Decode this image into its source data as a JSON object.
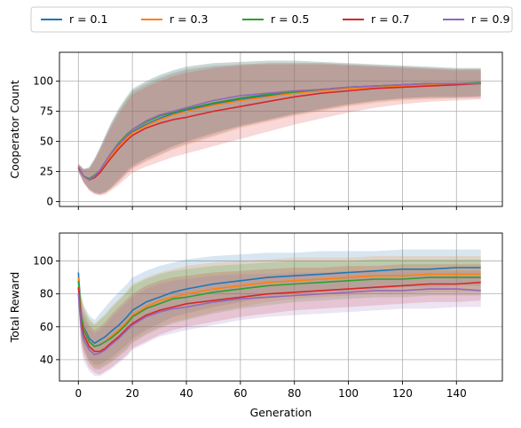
{
  "chart_data": {
    "type": "line",
    "shared_x_label": "Generation",
    "legend": {
      "placement": "top-center",
      "entries": [
        {
          "label": "r = 0.1",
          "color": "#1f77b4"
        },
        {
          "label": "r = 0.3",
          "color": "#ff7f0e"
        },
        {
          "label": "r = 0.5",
          "color": "#2ca02c"
        },
        {
          "label": "r = 0.7",
          "color": "#d62728"
        },
        {
          "label": "r = 0.9",
          "color": "#9467bd"
        }
      ]
    },
    "grid": true,
    "panels": [
      {
        "ylabel": "Cooperator Count",
        "xlim": [
          -7,
          157
        ],
        "ylim": [
          -4,
          124
        ],
        "x_ticks": [
          0,
          20,
          40,
          60,
          80,
          100,
          120,
          140
        ],
        "x_tick_labels": [
          "",
          "",
          "",
          "",
          "",
          "",
          "",
          ""
        ],
        "y_ticks": [
          0,
          25,
          50,
          75,
          100
        ],
        "y_tick_labels": [
          "0",
          "25",
          "50",
          "75",
          "100"
        ],
        "x": [
          0,
          2,
          4,
          6,
          8,
          10,
          12,
          15,
          18,
          20,
          25,
          30,
          35,
          40,
          50,
          60,
          70,
          80,
          90,
          100,
          110,
          120,
          130,
          140,
          149
        ],
        "series": [
          {
            "name": "r = 0.1",
            "color": "#1f77b4",
            "values": [
              28,
              21,
              19,
              21,
              26,
              33,
              39,
              47,
              54,
              58,
              64,
              69,
              73,
              76,
              81,
              85,
              88,
              91,
              93,
              95,
              96,
              97,
              98,
              98,
              98
            ],
            "lower": [
              25,
              16,
              10,
              7,
              6,
              8,
              11,
              17,
              24,
              28,
              34,
              39,
              44,
              48,
              55,
              62,
              67,
              72,
              76,
              80,
              83,
              85,
              86,
              86,
              87
            ],
            "upper": [
              31,
              27,
              28,
              35,
              44,
              54,
              64,
              76,
              86,
              92,
              98,
              103,
              107,
              110,
              113,
              114,
              115,
              115,
              115,
              114,
              113,
              112,
              111,
              110,
              110
            ]
          },
          {
            "name": "r = 0.3",
            "color": "#ff7f0e",
            "values": [
              28,
              21,
              19,
              21,
              25,
              32,
              38,
              46,
              53,
              57,
              63,
              68,
              72,
              75,
              80,
              84,
              87,
              90,
              92,
              94,
              95,
              96,
              97,
              98,
              98
            ],
            "lower": [
              25,
              16,
              10,
              7,
              6,
              7,
              10,
              16,
              23,
              27,
              33,
              38,
              43,
              47,
              54,
              61,
              66,
              71,
              75,
              79,
              82,
              84,
              85,
              86,
              86
            ],
            "upper": [
              31,
              27,
              28,
              35,
              44,
              54,
              63,
              75,
              85,
              91,
              97,
              102,
              106,
              109,
              112,
              114,
              115,
              115,
              115,
              114,
              113,
              112,
              111,
              110,
              110
            ]
          },
          {
            "name": "r = 0.5",
            "color": "#2ca02c",
            "values": [
              28,
              21,
              19,
              22,
              26,
              33,
              40,
              49,
              56,
              60,
              66,
              71,
              74,
              77,
              82,
              86,
              89,
              91,
              93,
              95,
              96,
              97,
              98,
              98,
              99
            ],
            "lower": [
              25,
              16,
              11,
              8,
              7,
              8,
              12,
              19,
              26,
              30,
              36,
              41,
              46,
              50,
              57,
              63,
              68,
              73,
              77,
              81,
              84,
              86,
              87,
              87,
              88
            ],
            "upper": [
              31,
              27,
              29,
              36,
              45,
              55,
              65,
              78,
              88,
              94,
              100,
              105,
              109,
              112,
              115,
              116,
              117,
              117,
              116,
              115,
              114,
              113,
              112,
              111,
              111
            ]
          },
          {
            "name": "r = 0.7",
            "color": "#d62728",
            "values": [
              28,
              21,
              18,
              20,
              24,
              30,
              36,
              44,
              51,
              55,
              61,
              65,
              68,
              70,
              75,
              79,
              83,
              87,
              90,
              92,
              94,
              95,
              96,
              97,
              98
            ],
            "lower": [
              25,
              15,
              9,
              6,
              5,
              6,
              9,
              14,
              20,
              24,
              29,
              33,
              37,
              40,
              46,
              52,
              58,
              64,
              69,
              74,
              78,
              81,
              83,
              84,
              85
            ],
            "upper": [
              31,
              27,
              27,
              34,
              42,
              52,
              61,
              73,
              83,
              89,
              95,
              100,
              104,
              107,
              111,
              113,
              114,
              114,
              114,
              113,
              112,
              111,
              110,
              109,
              109
            ]
          },
          {
            "name": "r = 0.9",
            "color": "#9467bd",
            "values": [
              29,
              21,
              18,
              21,
              26,
              33,
              40,
              48,
              55,
              60,
              67,
              72,
              75,
              78,
              84,
              88,
              90,
              92,
              93,
              95,
              96,
              97,
              98,
              98,
              98
            ],
            "lower": [
              26,
              16,
              10,
              7,
              6,
              8,
              11,
              18,
              25,
              29,
              36,
              41,
              46,
              50,
              57,
              63,
              68,
              73,
              77,
              81,
              84,
              86,
              87,
              87,
              87
            ],
            "upper": [
              32,
              27,
              28,
              36,
              45,
              55,
              65,
              77,
              87,
              93,
              100,
              105,
              109,
              112,
              115,
              116,
              117,
              117,
              116,
              115,
              114,
              113,
              112,
              111,
              111
            ]
          }
        ]
      },
      {
        "ylabel": "Total Reward",
        "xlabel": "Generation",
        "xlim": [
          -7,
          157
        ],
        "ylim": [
          27,
          117
        ],
        "x_ticks": [
          0,
          20,
          40,
          60,
          80,
          100,
          120,
          140
        ],
        "x_tick_labels": [
          "0",
          "20",
          "40",
          "60",
          "80",
          "100",
          "120",
          "140"
        ],
        "y_ticks": [
          40,
          60,
          80,
          100
        ],
        "y_tick_labels": [
          "40",
          "60",
          "80",
          "100"
        ],
        "x": [
          0,
          1,
          2,
          4,
          6,
          8,
          10,
          12,
          15,
          18,
          20,
          25,
          30,
          35,
          40,
          50,
          60,
          70,
          80,
          90,
          100,
          110,
          120,
          130,
          140,
          149
        ],
        "series": [
          {
            "name": "r = 0.1",
            "color": "#1f77b4",
            "values": [
              93,
              68,
              60,
              53,
              50,
              52,
              54,
              57,
              61,
              66,
              70,
              75,
              78,
              81,
              83,
              86,
              88,
              90,
              91,
              92,
              93,
              94,
              95,
              95,
              96,
              96
            ],
            "lower": [
              85,
              55,
              47,
              40,
              37,
              37,
              39,
              41,
              45,
              49,
              53,
              58,
              62,
              66,
              68,
              72,
              75,
              78,
              80,
              81,
              82,
              83,
              84,
              84,
              85,
              85
            ],
            "upper": [
              97,
              80,
              73,
              67,
              64,
              68,
              72,
              76,
              81,
              86,
              90,
              94,
              97,
              99,
              101,
              103,
              104,
              105,
              105,
              106,
              106,
              106,
              107,
              107,
              107,
              107
            ]
          },
          {
            "name": "r = 0.3",
            "color": "#ff7f0e",
            "values": [
              90,
              67,
              59,
              51,
              48,
              49,
              51,
              54,
              58,
              63,
              67,
              72,
              76,
              78,
              80,
              83,
              85,
              87,
              88,
              89,
              90,
              91,
              91,
              92,
              92,
              92
            ],
            "lower": [
              82,
              54,
              46,
              38,
              35,
              35,
              37,
              39,
              43,
              47,
              51,
              56,
              60,
              63,
              65,
              69,
              72,
              75,
              77,
              78,
              79,
              80,
              80,
              81,
              81,
              81
            ],
            "upper": [
              95,
              79,
              72,
              65,
              62,
              65,
              68,
              72,
              77,
              82,
              86,
              90,
              93,
              95,
              97,
              99,
              100,
              101,
              102,
              102,
              102,
              103,
              103,
              103,
              103,
              103
            ]
          },
          {
            "name": "r = 0.5",
            "color": "#2ca02c",
            "values": [
              88,
              66,
              58,
              51,
              48,
              49,
              51,
              53,
              57,
              62,
              66,
              71,
              74,
              77,
              78,
              81,
              83,
              85,
              86,
              87,
              88,
              89,
              89,
              90,
              90,
              90
            ],
            "lower": [
              80,
              53,
              45,
              38,
              34,
              34,
              36,
              38,
              42,
              46,
              50,
              55,
              59,
              62,
              64,
              68,
              71,
              73,
              75,
              76,
              77,
              78,
              78,
              79,
              79,
              79
            ],
            "upper": [
              93,
              78,
              71,
              64,
              61,
              64,
              67,
              71,
              76,
              81,
              85,
              89,
              92,
              94,
              95,
              97,
              98,
              99,
              100,
              100,
              100,
              101,
              101,
              101,
              101,
              101
            ]
          },
          {
            "name": "r = 0.7",
            "color": "#d62728",
            "values": [
              84,
              63,
              55,
              48,
              45,
              45,
              47,
              50,
              54,
              59,
              62,
              67,
              70,
              72,
              74,
              76,
              78,
              80,
              81,
              82,
              83,
              84,
              85,
              86,
              86,
              87
            ],
            "lower": [
              76,
              50,
              42,
              35,
              32,
              31,
              33,
              35,
              39,
              43,
              47,
              51,
              55,
              58,
              60,
              63,
              66,
              68,
              70,
              71,
              72,
              73,
              74,
              75,
              75,
              76
            ],
            "upper": [
              89,
              75,
              68,
              61,
              58,
              60,
              63,
              67,
              72,
              77,
              80,
              85,
              88,
              90,
              91,
              93,
              94,
              95,
              96,
              96,
              97,
              97,
              98,
              98,
              98,
              98
            ]
          },
          {
            "name": "r = 0.9",
            "color": "#9467bd",
            "values": [
              80,
              60,
              52,
              46,
              43,
              44,
              46,
              49,
              53,
              58,
              61,
              66,
              69,
              71,
              72,
              75,
              77,
              78,
              79,
              80,
              81,
              82,
              82,
              83,
              83,
              82
            ],
            "lower": [
              72,
              47,
              39,
              33,
              30,
              30,
              32,
              34,
              38,
              42,
              46,
              50,
              54,
              56,
              58,
              61,
              64,
              66,
              67,
              68,
              69,
              70,
              71,
              71,
              72,
              72
            ],
            "upper": [
              85,
              72,
              65,
              59,
              56,
              58,
              61,
              65,
              70,
              75,
              78,
              83,
              86,
              88,
              89,
              91,
              92,
              92,
              93,
              93,
              94,
              94,
              94,
              94,
              94,
              94
            ]
          }
        ]
      }
    ]
  }
}
